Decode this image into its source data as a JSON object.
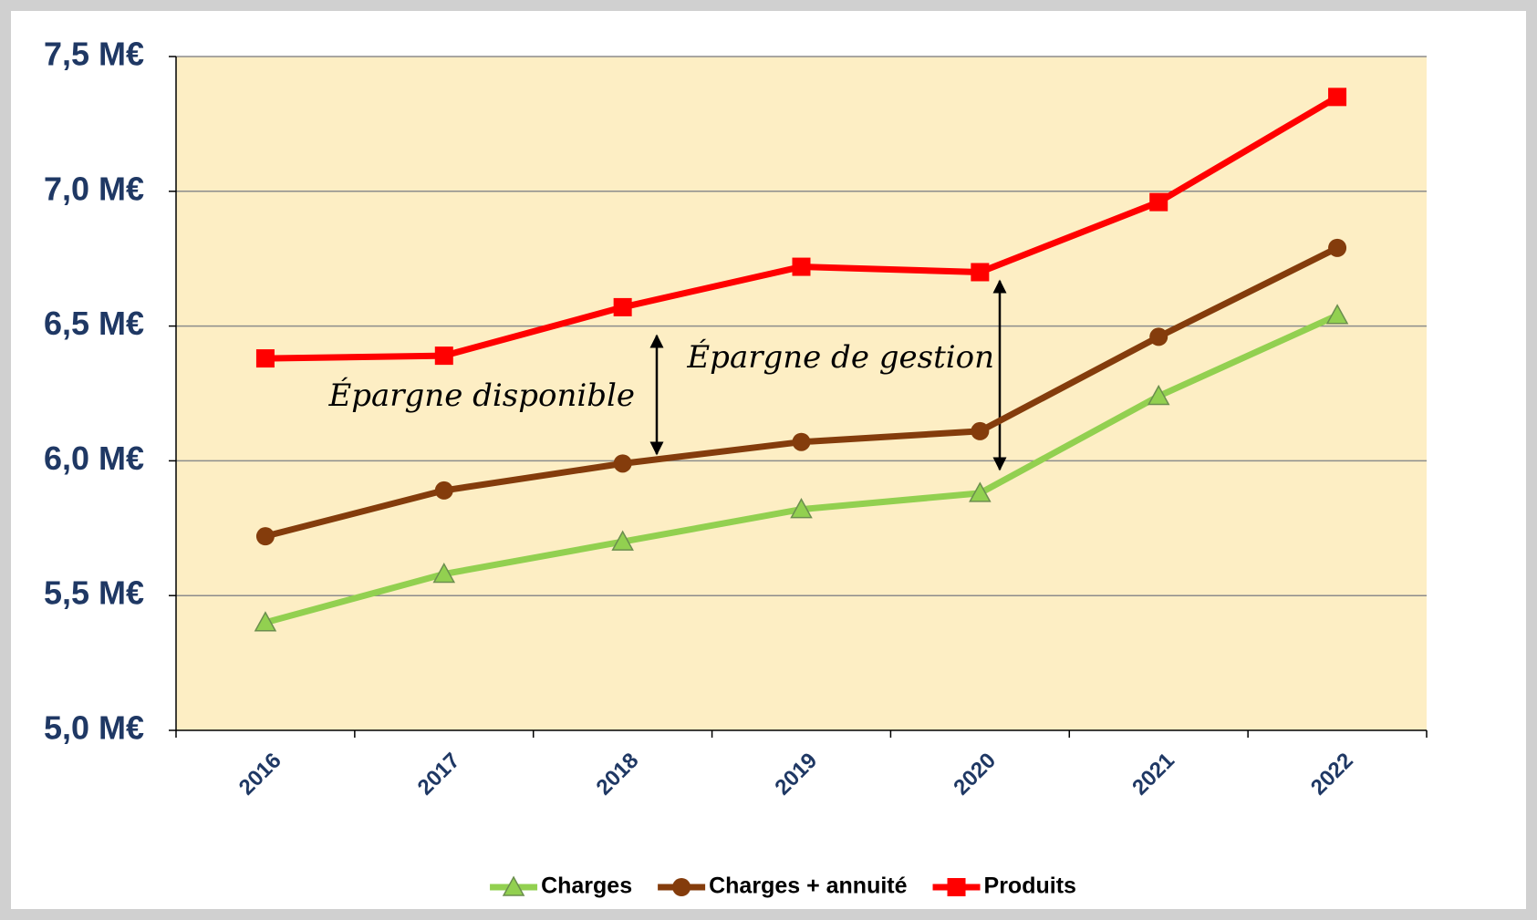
{
  "chart_data": {
    "type": "line",
    "categories": [
      "2016",
      "2017",
      "2018",
      "2019",
      "2020",
      "2021",
      "2022"
    ],
    "series": [
      {
        "name": "Charges",
        "color": "#92d050",
        "marker": "triangle",
        "values": [
          5.4,
          5.58,
          5.7,
          5.82,
          5.88,
          6.24,
          6.54
        ]
      },
      {
        "name": "Charges + annuité",
        "color": "#843c0c",
        "marker": "circle",
        "values": [
          5.72,
          5.89,
          5.99,
          6.07,
          6.11,
          6.46,
          6.79
        ]
      },
      {
        "name": "Produits",
        "color": "#ff0000",
        "marker": "square",
        "values": [
          6.38,
          6.39,
          6.57,
          6.72,
          6.7,
          6.96,
          7.35
        ]
      }
    ],
    "ylim": [
      5.0,
      7.5
    ],
    "yticks": [
      {
        "value": 5.0,
        "label": "5,0 M€"
      },
      {
        "value": 5.5,
        "label": "5,5 M€"
      },
      {
        "value": 6.0,
        "label": "6,0 M€"
      },
      {
        "value": 6.5,
        "label": "6,5 M€"
      },
      {
        "value": 7.0,
        "label": "7,0 M€"
      },
      {
        "value": 7.5,
        "label": "7,5 M€"
      }
    ],
    "grid": true,
    "legend": "bottom",
    "annotations": [
      "Épargne disponible",
      "Épargne de gestion"
    ]
  }
}
